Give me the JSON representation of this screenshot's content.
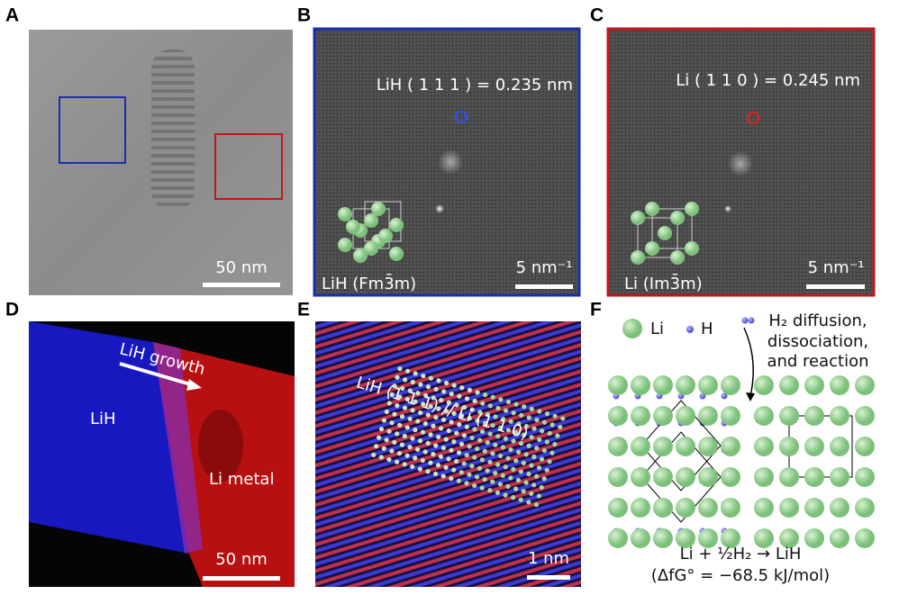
{
  "panels": [
    {
      "letter": "A",
      "scale_bar": "50 nm"
    },
    {
      "letter": "B",
      "annotation": "LiH ( 1 1 1 ) = 0.235 nm",
      "phase": "LiH  (Fm3̄m)",
      "scale_bar": "5 nm⁻¹"
    },
    {
      "letter": "C",
      "annotation": "Li ( 1 1 0 ) = 0.245 nm",
      "phase": "Li (Im3̄m)",
      "scale_bar": "5 nm⁻¹"
    },
    {
      "letter": "D",
      "arrow": "LiH growth",
      "regions": [
        "LiH",
        "Li metal"
      ],
      "scale_bar": "50 nm"
    },
    {
      "letter": "E",
      "annotation": "LiH (1 1 1) // Li (1 1 0)",
      "scale_bar": "1 nm"
    },
    {
      "letter": "F",
      "legend": [
        "Li",
        "H"
      ],
      "note": [
        "H₂ diffusion,",
        "dissociation,",
        "and reaction"
      ],
      "equation": "Li + ½H₂ → LiH",
      "energy": "(ΔfG° = −68.5 kJ/mol)"
    }
  ]
}
